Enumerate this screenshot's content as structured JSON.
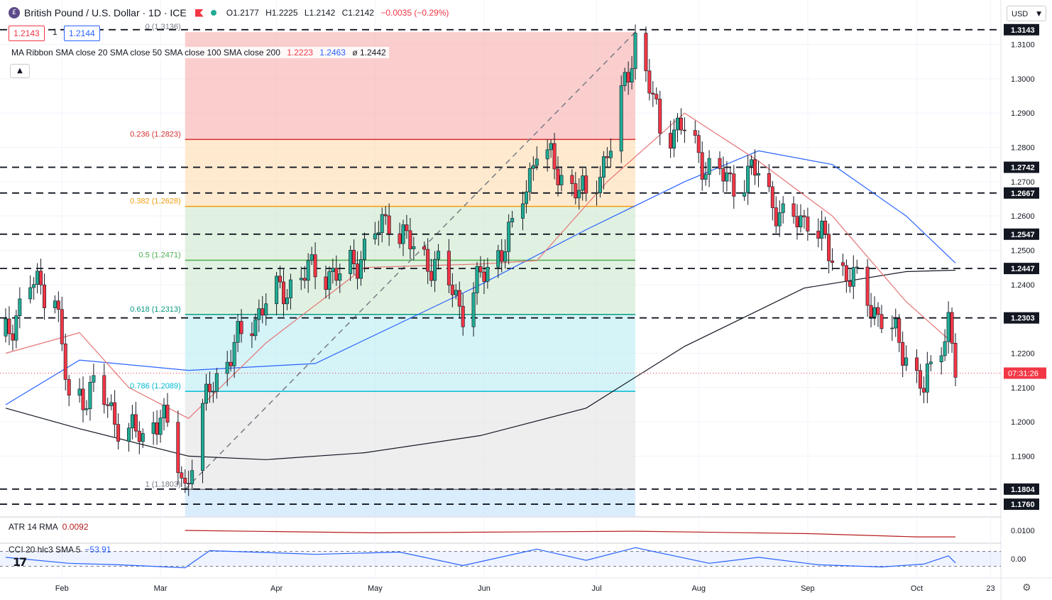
{
  "header": {
    "title": "British Pound / U.S. Dollar · 1D · ICE",
    "open": "O1.2177",
    "high": "H1.2225",
    "low": "L1.2142",
    "close": "C1.2142",
    "change": "−0.0035 (−0.29%)",
    "sell_price": "1.2143",
    "spread": "1",
    "buy_price": "1.2144",
    "currency": "USD",
    "colors": {
      "down": "#f23645",
      "up": "#22ab94"
    }
  },
  "ma_legend": {
    "label": "MA Ribbon SMA close 20 SMA close 50 SMA close 100 SMA close 200",
    "v20": "1.2223",
    "v50": "1.2463",
    "v200": "ø 1.2442"
  },
  "atr": {
    "label": "ATR 14 RMA",
    "value": "0.0092"
  },
  "cci": {
    "label": "CCI 20 hlc3 SMA 5",
    "value": "−53.91"
  },
  "chart_data": {
    "type": "candlestick",
    "price_axis": {
      "min": 1.1725,
      "max": 1.3155,
      "ticks": [
        "1.3100",
        "1.3000",
        "1.2900",
        "1.2800",
        "1.2700",
        "1.2600",
        "1.2500",
        "1.2400",
        "1.2200",
        "1.2100",
        "1.2000",
        "1.1900"
      ]
    },
    "time_axis": {
      "ticks": [
        {
          "label": "Feb",
          "date": "2023-02-01"
        },
        {
          "label": "Mar",
          "date": "2023-03-01"
        },
        {
          "label": "Apr",
          "date": "2023-04-03"
        },
        {
          "label": "May",
          "date": "2023-05-01"
        },
        {
          "label": "Jun",
          "date": "2023-06-01"
        },
        {
          "label": "Jul",
          "date": "2023-07-03"
        },
        {
          "label": "Aug",
          "date": "2023-08-01"
        },
        {
          "label": "Sep",
          "date": "2023-09-01"
        },
        {
          "label": "Oct",
          "date": "2023-10-02"
        },
        {
          "label": "23",
          "date": "2023-10-23"
        }
      ]
    },
    "last_price_label": "07:31:26",
    "last_price": 1.2142,
    "horizontal_levels": [
      {
        "label": "1.3143",
        "value": 1.3143
      },
      {
        "label": "1.2742",
        "value": 1.2742
      },
      {
        "label": "1.2667",
        "value": 1.2667
      },
      {
        "label": "1.2547",
        "value": 1.2547
      },
      {
        "label": "1.2447",
        "value": 1.2447
      },
      {
        "label": "1.2303",
        "value": 1.2303
      },
      {
        "label": "1.1804",
        "value": 1.1804
      },
      {
        "label": "1.1760",
        "value": 1.176
      }
    ],
    "fibonacci": {
      "start_date": "2023-03-08",
      "end_date": "2023-07-14",
      "levels": [
        {
          "ratio": "0",
          "label": "0 (1.3136)",
          "value": 1.3136,
          "color": "#f7a5a5"
        },
        {
          "ratio": "0.236",
          "label": "0.236 (1.2823)",
          "value": 1.2823,
          "color": "#ffd9a8",
          "line": "#d32f2f"
        },
        {
          "ratio": "0.382",
          "label": "0.382 (1.2628)",
          "value": 1.2628,
          "color": "#c8e6c9",
          "line": "#f59d0c"
        },
        {
          "ratio": "0.5",
          "label": "0.5 (1.2471)",
          "value": 1.2471,
          "color": "#c8e6c9",
          "line": "#4caf50"
        },
        {
          "ratio": "0.618",
          "label": "0.618 (1.2313)",
          "value": 1.2313,
          "color": "#b2ebf2",
          "line": "#089981"
        },
        {
          "ratio": "0.786",
          "label": "0.786 (1.2089)",
          "value": 1.2089,
          "color": "#e0e0e0",
          "line": "#00bcd4"
        },
        {
          "ratio": "1",
          "label": "1 (1.1803)",
          "value": 1.1803,
          "color": "#bbdefb",
          "line": "#787b86"
        }
      ]
    },
    "price_path": [
      [
        "2023-01-16",
        1.225
      ],
      [
        "2023-01-23",
        1.24
      ],
      [
        "2023-01-30",
        1.238
      ],
      [
        "2023-02-03",
        1.205
      ],
      [
        "2023-02-10",
        1.21
      ],
      [
        "2023-02-17",
        1.2
      ],
      [
        "2023-02-24",
        1.195
      ],
      [
        "2023-03-01",
        1.203
      ],
      [
        "2023-03-08",
        1.181
      ],
      [
        "2023-03-15",
        1.21
      ],
      [
        "2023-03-24",
        1.225
      ],
      [
        "2023-03-31",
        1.235
      ],
      [
        "2023-04-07",
        1.24
      ],
      [
        "2023-04-14",
        1.245
      ],
      [
        "2023-04-21",
        1.242
      ],
      [
        "2023-04-28",
        1.25
      ],
      [
        "2023-05-05",
        1.26
      ],
      [
        "2023-05-12",
        1.25
      ],
      [
        "2023-05-19",
        1.245
      ],
      [
        "2023-05-26",
        1.233
      ],
      [
        "2023-06-02",
        1.245
      ],
      [
        "2023-06-09",
        1.255
      ],
      [
        "2023-06-16",
        1.28
      ],
      [
        "2023-06-23",
        1.272
      ],
      [
        "2023-06-30",
        1.265
      ],
      [
        "2023-07-07",
        1.28
      ],
      [
        "2023-07-14",
        1.312
      ],
      [
        "2023-07-21",
        1.286
      ],
      [
        "2023-07-28",
        1.285
      ],
      [
        "2023-08-04",
        1.273
      ],
      [
        "2023-08-11",
        1.27
      ],
      [
        "2023-08-18",
        1.273
      ],
      [
        "2023-08-25",
        1.258
      ],
      [
        "2023-09-01",
        1.26
      ],
      [
        "2023-09-08",
        1.248
      ],
      [
        "2023-09-15",
        1.24
      ],
      [
        "2023-09-22",
        1.23
      ],
      [
        "2023-09-29",
        1.22
      ],
      [
        "2023-10-04",
        1.209
      ],
      [
        "2023-10-11",
        1.23
      ],
      [
        "2023-10-13",
        1.2142
      ]
    ],
    "sma20": [
      [
        "2023-01-16",
        1.22
      ],
      [
        "2023-02-06",
        1.226
      ],
      [
        "2023-02-20",
        1.21
      ],
      [
        "2023-03-09",
        1.201
      ],
      [
        "2023-03-31",
        1.223
      ],
      [
        "2023-04-28",
        1.245
      ],
      [
        "2023-05-31",
        1.246
      ],
      [
        "2023-06-16",
        1.247
      ],
      [
        "2023-07-06",
        1.27
      ],
      [
        "2023-07-28",
        1.29
      ],
      [
        "2023-08-18",
        1.276
      ],
      [
        "2023-09-08",
        1.26
      ],
      [
        "2023-09-29",
        1.235
      ],
      [
        "2023-10-13",
        1.2223
      ]
    ],
    "sma50": [
      [
        "2023-01-16",
        1.205
      ],
      [
        "2023-02-06",
        1.218
      ],
      [
        "2023-03-09",
        1.215
      ],
      [
        "2023-04-14",
        1.217
      ],
      [
        "2023-05-31",
        1.24
      ],
      [
        "2023-06-30",
        1.256
      ],
      [
        "2023-07-28",
        1.27
      ],
      [
        "2023-08-18",
        1.279
      ],
      [
        "2023-09-08",
        1.275
      ],
      [
        "2023-09-29",
        1.26
      ],
      [
        "2023-10-13",
        1.2463
      ]
    ],
    "sma200": [
      [
        "2023-01-16",
        1.204
      ],
      [
        "2023-02-06",
        1.198
      ],
      [
        "2023-03-09",
        1.19
      ],
      [
        "2023-03-31",
        1.189
      ],
      [
        "2023-04-28",
        1.191
      ],
      [
        "2023-05-31",
        1.196
      ],
      [
        "2023-06-30",
        1.204
      ],
      [
        "2023-07-28",
        1.222
      ],
      [
        "2023-08-31",
        1.239
      ],
      [
        "2023-09-29",
        1.2438
      ],
      [
        "2023-10-13",
        1.2442
      ]
    ],
    "atr_axis": {
      "min": 0.0085,
      "max": 0.0115,
      "ticks": [
        "0.0100"
      ]
    },
    "atr_path": [
      [
        "2023-03-08",
        0.01
      ],
      [
        "2023-05-01",
        0.0097
      ],
      [
        "2023-07-14",
        0.0099
      ],
      [
        "2023-09-01",
        0.0096
      ],
      [
        "2023-10-02",
        0.0092
      ],
      [
        "2023-10-13",
        0.0092
      ]
    ],
    "cci_axis": {
      "min": -200,
      "max": 200,
      "ticks": [
        "0.00"
      ]
    },
    "cci_path": [
      [
        "2023-01-16",
        20
      ],
      [
        "2023-02-03",
        -60
      ],
      [
        "2023-02-17",
        -80
      ],
      [
        "2023-03-08",
        -120
      ],
      [
        "2023-03-15",
        110
      ],
      [
        "2023-04-03",
        80
      ],
      [
        "2023-04-14",
        60
      ],
      [
        "2023-05-08",
        90
      ],
      [
        "2023-05-26",
        -90
      ],
      [
        "2023-06-16",
        130
      ],
      [
        "2023-06-30",
        -20
      ],
      [
        "2023-07-14",
        150
      ],
      [
        "2023-08-04",
        -60
      ],
      [
        "2023-08-18",
        20
      ],
      [
        "2023-09-04",
        -80
      ],
      [
        "2023-09-22",
        -110
      ],
      [
        "2023-10-04",
        -70
      ],
      [
        "2023-10-11",
        40
      ],
      [
        "2023-10-13",
        -53.91
      ]
    ]
  }
}
